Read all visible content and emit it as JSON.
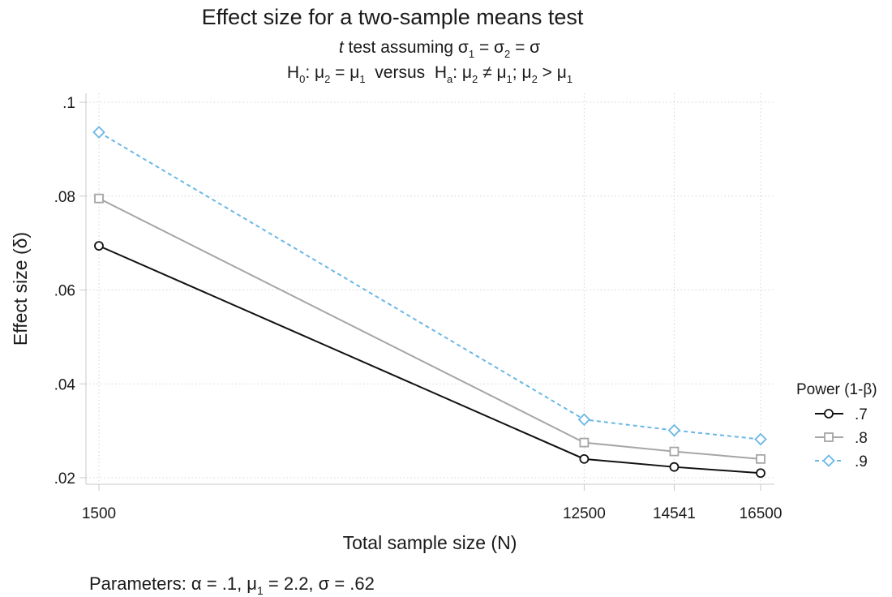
{
  "chart_data": {
    "type": "line",
    "title": "Effect size for a two-sample means test",
    "subtitle_line1": {
      "test": "t",
      "rest": " test assuming σ",
      "s1": "1",
      "mid1": " = σ",
      "s2": "2",
      "end": " = σ"
    },
    "subtitle_line2": {
      "h0": "H",
      "h0_sub": "0",
      "h0_expr": ": μ",
      "a_sub": "2",
      "eq": " = μ",
      "b_sub": "1",
      "versus": "  versus  ",
      "ha": "H",
      "ha_sub": "a",
      "ha_expr": ": μ",
      "c_sub": "2",
      "neq": " ≠ μ",
      "d_sub": "1",
      "semi": "; μ",
      "e_sub": "2",
      "gt": " > μ",
      "f_sub": "1"
    },
    "xlabel": "Total sample size (N)",
    "ylabel": "Effect size (δ)",
    "x": [
      1500,
      12500,
      14541,
      16500
    ],
    "x_tick_labels": [
      "1500",
      "12500",
      "14541",
      "16500"
    ],
    "xlim": [
      1500,
      16500
    ],
    "ylim": [
      0.02,
      0.1
    ],
    "y_ticks": [
      0.02,
      0.04,
      0.06,
      0.08,
      0.1
    ],
    "y_tick_labels": [
      ".02",
      ".04",
      ".06",
      ".08",
      ".1"
    ],
    "grid": true,
    "legend": {
      "title": "Power (1-β)",
      "position": "right"
    },
    "series": [
      {
        "name": ".7",
        "values": [
          0.0694,
          0.024,
          0.0223,
          0.021
        ],
        "color": "#111111",
        "marker": "circle",
        "dash": "solid"
      },
      {
        "name": ".8",
        "values": [
          0.0795,
          0.0275,
          0.0256,
          0.024
        ],
        "color": "#a6a6a6",
        "marker": "square",
        "dash": "solid"
      },
      {
        "name": ".9",
        "values": [
          0.0936,
          0.0324,
          0.0301,
          0.0282
        ],
        "color": "#6ab7e6",
        "marker": "diamond",
        "dash": "dashed"
      }
    ],
    "note": {
      "prefix": "Parameters: α = .1, μ",
      "sub": "1",
      "suffix": " = 2.2, σ = .62"
    }
  }
}
